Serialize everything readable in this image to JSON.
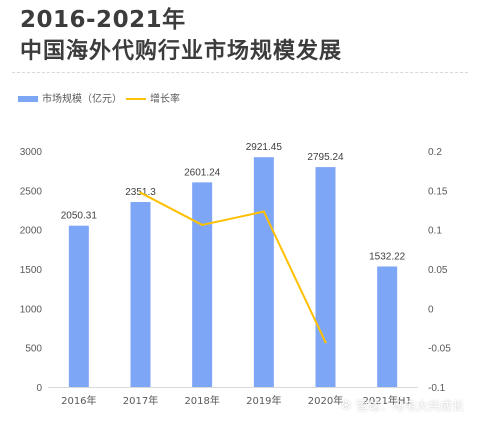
{
  "header": {
    "title_line1": "2016-2021年",
    "title_line2": "中国海外代购行业市场规模发展"
  },
  "watermark": {
    "icon": "snowball-icon",
    "text": "雪球：马韦大共成长"
  },
  "colors": {
    "bar": "#7EA6F6",
    "line": "#FFC000",
    "axis_text": "#595959",
    "grid": "#d9d9d9"
  },
  "chart_data": {
    "type": "bar",
    "categories": [
      "2016年",
      "2017年",
      "2018年",
      "2019年",
      "2020年",
      "2021年H1"
    ],
    "series": [
      {
        "name": "市场规模（亿元）",
        "type": "bar",
        "axis": "left",
        "values": [
          2050.31,
          2351.3,
          2601.24,
          2921.45,
          2795.24,
          1532.22
        ],
        "labels": [
          "2050.31",
          "2351.3",
          "2601.24",
          "2921.45",
          "2795.24",
          "1532.22"
        ]
      },
      {
        "name": "增长率",
        "type": "line",
        "axis": "right",
        "values": [
          null,
          0.147,
          0.106,
          0.123,
          -0.043,
          null
        ]
      }
    ],
    "y_left": {
      "ticks": [
        0,
        500,
        1000,
        1500,
        2000,
        2500,
        3000
      ],
      "lim": [
        0,
        3000
      ]
    },
    "y_right": {
      "ticks": [
        "0.2",
        "0.15",
        "0.1",
        "0.05",
        "0",
        "-0.05",
        "-0.1"
      ],
      "lim": [
        -0.1,
        0.2
      ]
    },
    "legend_position": "top-left",
    "grid": false
  }
}
